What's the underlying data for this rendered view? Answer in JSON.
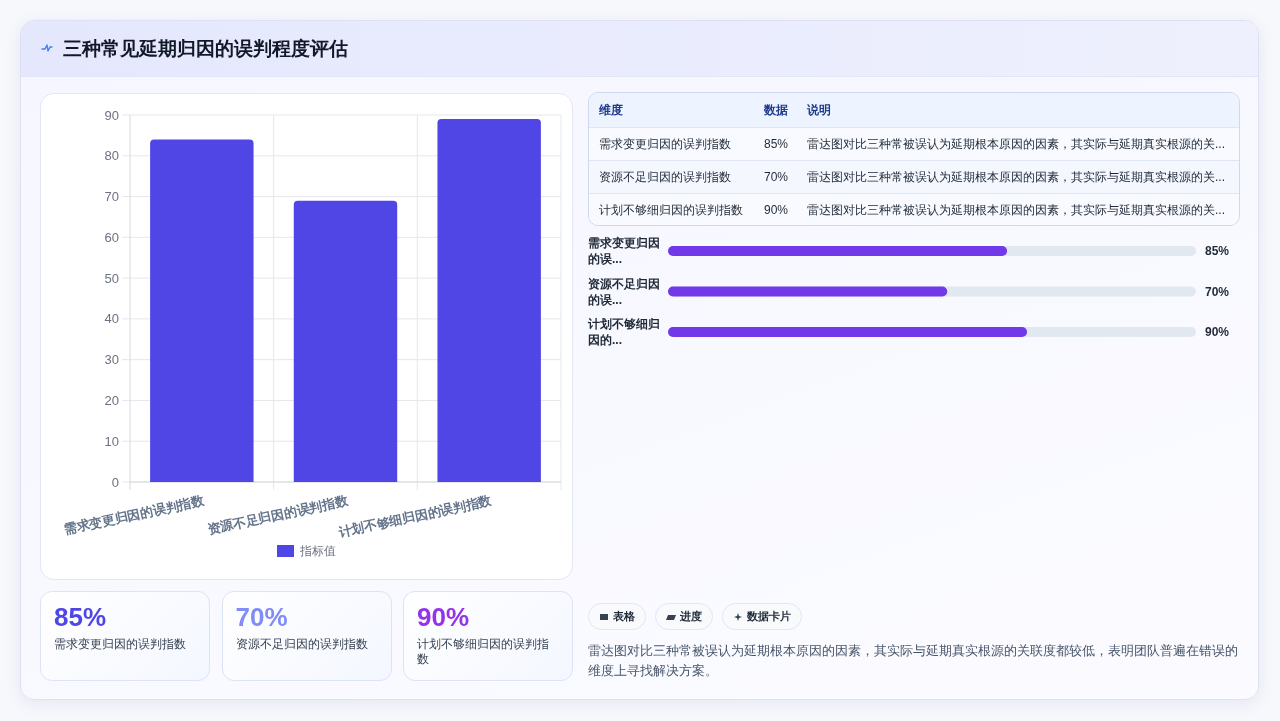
{
  "chart_data": [
    {
      "type": "bar",
      "title": "三种常见延期归因的误判程度评估",
      "categories": [
        "需求变更归因的误判指数",
        "资源不足归因的误判指数",
        "计划不够细归因的误判指数"
      ],
      "series": [
        {
          "name": "指标值",
          "color": "#4f46e5",
          "values": [
            84,
            69,
            89
          ]
        }
      ],
      "ylim": [
        0,
        90
      ],
      "yticks": [
        0,
        10,
        20,
        30,
        40,
        50,
        60,
        70,
        80,
        90
      ],
      "grid": true,
      "legend": "bottom"
    },
    {
      "type": "other",
      "annotations": [
        "维度",
        "数据",
        "说明",
        "需求变更归因的误判指数",
        "85%",
        "雷达图对比三种常被误认为延期根本原因的因素，其实际与延期真实根源的关...",
        "资源不足归因的误判指数",
        "70%",
        "雷达图对比三种常被误认为延期根本原因的因素，其实际与延期真实根源的关...",
        "计划不够细归因的误判指数",
        "90%",
        "雷达图对比三种常被误认为延期根本原因的因素，其实际与延期真实根源的关..."
      ]
    },
    {
      "type": "bar",
      "orientation": "horizontal",
      "categories": [
        "需求变更归因的误...",
        "资源不足归因的误...",
        "计划不够细归因的..."
      ],
      "values": [
        85,
        70,
        90
      ],
      "value_labels": [
        "85%",
        "70%",
        "90%"
      ],
      "color": "#7139e8"
    },
    {
      "type": "other",
      "annotations": [
        "85%",
        "需求变更归因的误判指数",
        "70%",
        "资源不足归因的误判指数",
        "90%",
        "计划不够细归因的误判指数"
      ],
      "colors": [
        "#4f46e5",
        "#818cf8",
        "#9333ea"
      ]
    },
    {
      "type": "other",
      "annotations": [
        "表格",
        "进度",
        "数据卡片",
        "雷达图对比三种常被误认为延期根本原因的因素，其实际与延期真实根源的关联度都较低，表明团队普遍在错误的维度上寻找解决方案。"
      ]
    }
  ]
}
